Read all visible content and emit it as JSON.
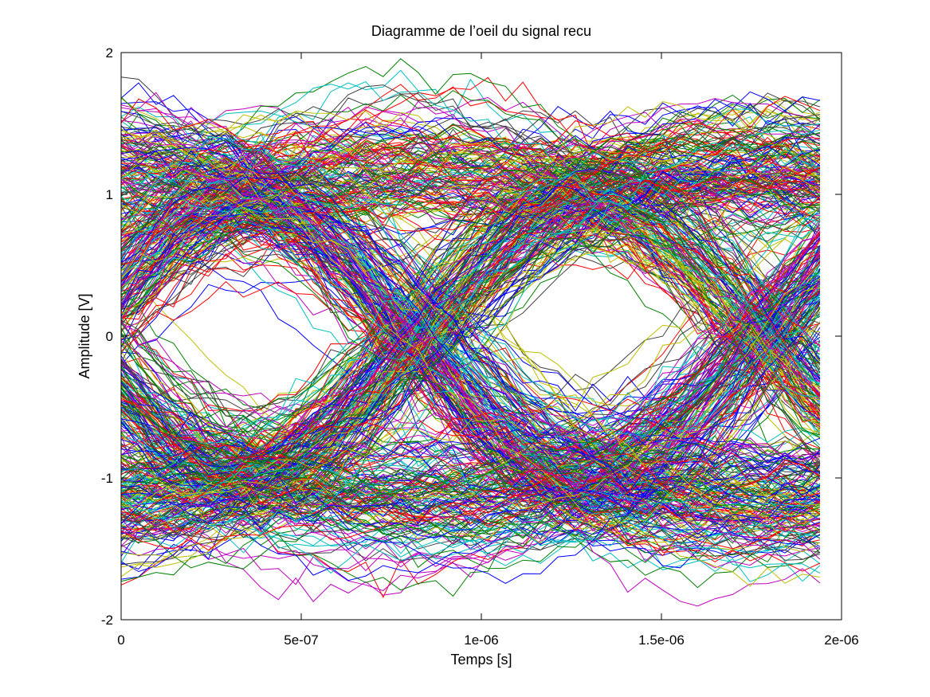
{
  "chart_data": {
    "type": "line",
    "title": "Diagramme de l’oeil du signal recu",
    "xlabel": "Temps [s]",
    "ylabel": "Amplitude [V]",
    "xlim": [
      0,
      2e-06
    ],
    "ylim": [
      -2,
      2
    ],
    "x_ticks": [
      {
        "value": 0,
        "label": "0"
      },
      {
        "value": 5e-07,
        "label": "5e-07"
      },
      {
        "value": 1e-06,
        "label": "1e-06"
      },
      {
        "value": 1.5e-06,
        "label": "1.5e-06"
      },
      {
        "value": 2e-06,
        "label": "2e-06"
      }
    ],
    "y_ticks": [
      {
        "value": 2,
        "label": "2"
      },
      {
        "value": 1,
        "label": "1"
      },
      {
        "value": 0,
        "label": "0"
      },
      {
        "value": -1,
        "label": "-1"
      },
      {
        "value": -2,
        "label": "-2"
      }
    ],
    "grid": false,
    "legend": "none",
    "trace_count": 600,
    "trace_x_end": 1.94e-06,
    "symbol_period": 9.5e-07,
    "symbol_levels": [
      -1,
      1
    ],
    "palette": [
      "#0000ff",
      "#008000",
      "#ff0000",
      "#00bfbf",
      "#bf00bf",
      "#bfbf00",
      "#404040"
    ]
  }
}
